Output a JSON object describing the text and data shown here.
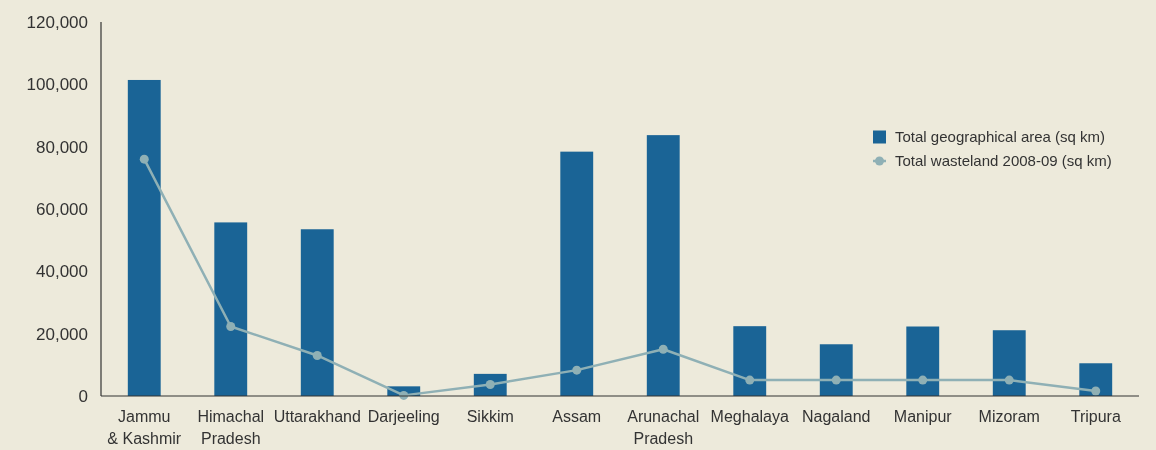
{
  "chart_data": {
    "type": "bar",
    "categories": [
      "Jammu\n& Kashmir",
      "Himachal\nPradesh",
      "Uttarakhand",
      "Darjeeling",
      "Sikkim",
      "Assam",
      "Arunachal\nPradesh",
      "Meghalaya",
      "Nagaland",
      "Manipur",
      "Mizoram",
      "Tripura"
    ],
    "series": [
      {
        "name": "Total geographical area (sq km)",
        "color": "#1a6496",
        "values": [
          101400,
          55700,
          53500,
          3100,
          7100,
          78400,
          83700,
          22400,
          16600,
          22300,
          21100,
          10500
        ]
      },
      {
        "name": "Total wasteland 2008-09 (sq km)",
        "type": "line",
        "color": "#8fb0b5",
        "values": [
          76000,
          22300,
          13000,
          200,
          3700,
          8300,
          15000,
          5100,
          5100,
          5100,
          5100,
          1600
        ]
      }
    ],
    "ylim": [
      0,
      120000
    ],
    "yticks": [
      {
        "value": 0,
        "label": "0"
      },
      {
        "value": 20000,
        "label": "20,000"
      },
      {
        "value": 40000,
        "label": "40,000"
      },
      {
        "value": 60000,
        "label": "60,000"
      },
      {
        "value": 80000,
        "label": "80,000"
      },
      {
        "value": 100000,
        "label": "100,000"
      },
      {
        "value": 120000,
        "label": "120,000"
      }
    ],
    "grid": false,
    "legend": "right",
    "marker": "circle"
  }
}
